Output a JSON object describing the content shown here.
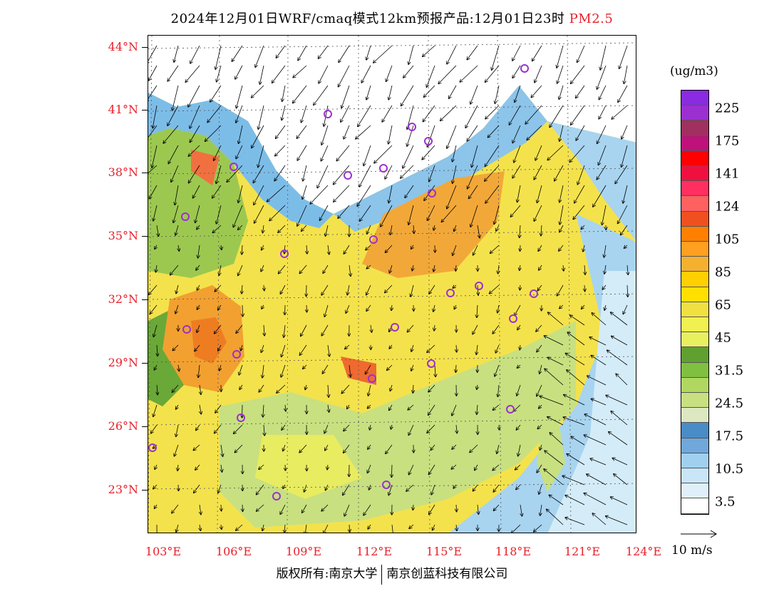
{
  "title": {
    "main": "2024年12月01日WRF/cmaq模式12km预报产品:12月01日23时",
    "pollutant": "PM2.5"
  },
  "axes": {
    "lat_labels": [
      "44°N",
      "41°N",
      "38°N",
      "35°N",
      "32°N",
      "29°N",
      "26°N",
      "23°N"
    ],
    "lon_labels": [
      "103°E",
      "106°E",
      "109°E",
      "112°E",
      "115°E",
      "118°E",
      "121°E",
      "124°E"
    ]
  },
  "legend": {
    "unit": "(ug/m3)",
    "colors": [
      "#8a2be2",
      "#9b30d0",
      "#a03060",
      "#c0107a",
      "#ff0000",
      "#f01040",
      "#ff3060",
      "#ff6060",
      "#f05020",
      "#ff8000",
      "#ffa020",
      "#f5b030",
      "#ffd000",
      "#ffe000",
      "#f0e040",
      "#f0f050",
      "#e8f060",
      "#60a030",
      "#80c040",
      "#b0d860",
      "#c8e080",
      "#dde8c0",
      "#4a8cc8",
      "#70a8dc",
      "#a0d0f0",
      "#c8e6f8",
      "#dff0fa",
      "#ffffff"
    ],
    "labels": [
      "225",
      "175",
      "141",
      "124",
      "105",
      "85",
      "65",
      "45",
      "31.5",
      "24.5",
      "17.5",
      "10.5",
      "3.5"
    ]
  },
  "wind_scale": {
    "label": "10 m/s"
  },
  "footer": {
    "copyright": "版权所有:南京大学",
    "company": "南京创蓝科技有限公司"
  },
  "map": {
    "land_color": "#f7e34a",
    "sea_color": "#a8d4f0",
    "north_color": "#ffffff"
  }
}
